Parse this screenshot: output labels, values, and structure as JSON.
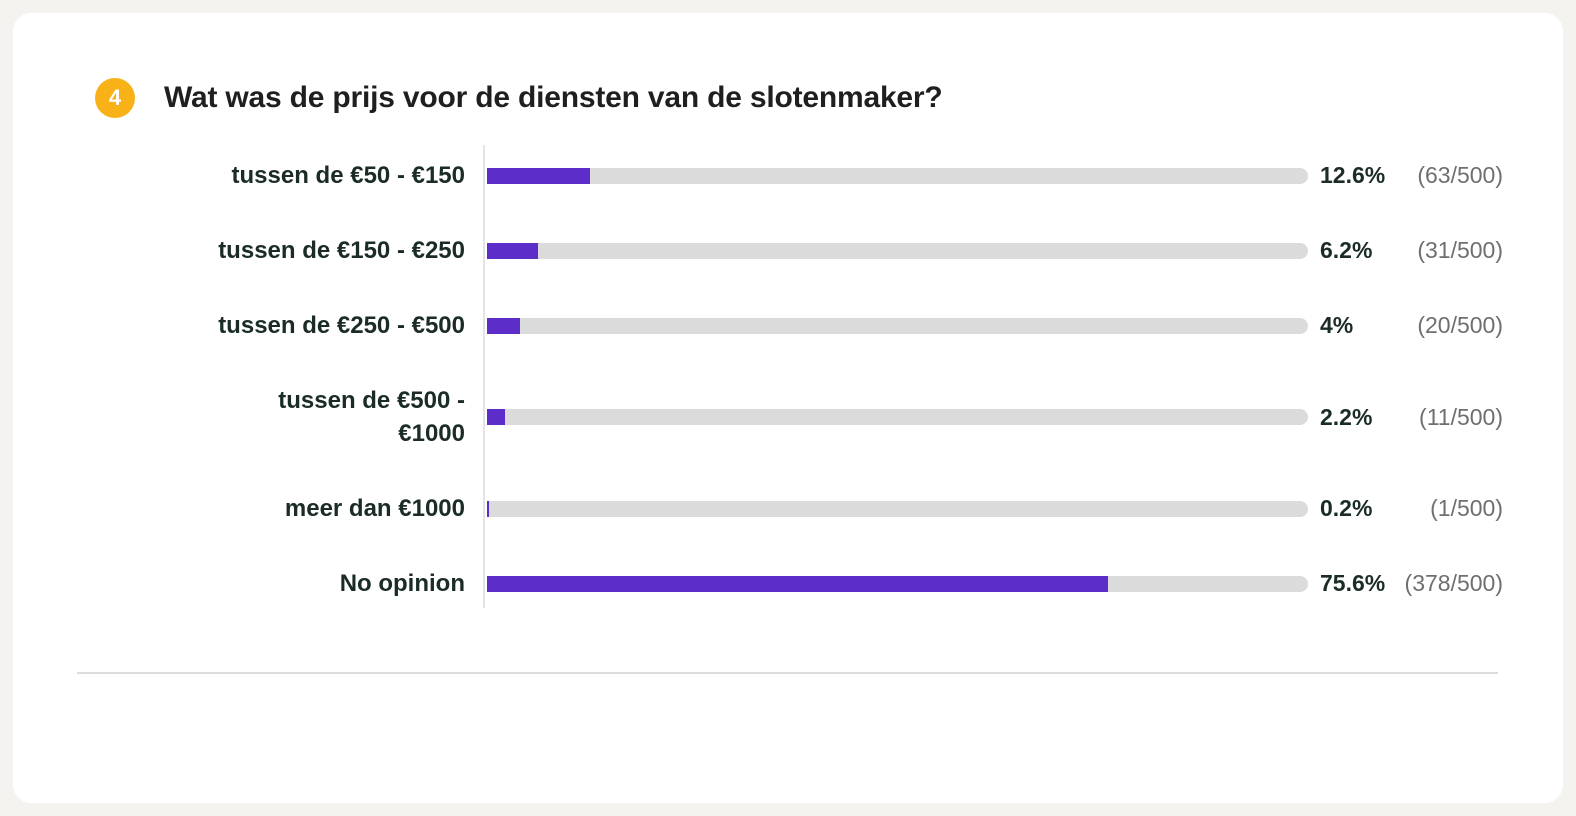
{
  "page": {
    "background_color": "#F5F3F0",
    "card_color": "#FFFFFF"
  },
  "question": {
    "number": "4",
    "title": "Wat was de prijs voor de diensten van de slotenmaker?",
    "badge_color": "#F8B117"
  },
  "chart_data": {
    "type": "bar",
    "orientation": "horizontal",
    "title": "Wat was de prijs voor de diensten van de slotenmaker?",
    "categories": [
      "tussen de €50 - €150",
      "tussen de €150 - €250",
      "tussen de €250 - €500",
      "tussen de €500 - €1000",
      "meer dan €1000",
      "No opinion"
    ],
    "display_labels": [
      "tussen de €50 - €150",
      "tussen de €150 - €250",
      "tussen de €250 - €500",
      "tussen de €500 -\n€1000",
      "meer dan €1000",
      "No opinion"
    ],
    "values": [
      12.6,
      6.2,
      4,
      2.2,
      0.2,
      75.6
    ],
    "percent_labels": [
      "12.6%",
      "6.2%",
      "4%",
      "2.2%",
      "0.2%",
      "75.6%"
    ],
    "counts": [
      63,
      31,
      20,
      11,
      1,
      378
    ],
    "count_labels": [
      "(63/500)",
      "(31/500)",
      "(20/500)",
      "(11/500)",
      "(1/500)",
      "(378/500)"
    ],
    "total_responses": 500,
    "xlim": [
      0,
      100
    ],
    "grid": false,
    "legend": false,
    "bar_color": "#5C2DC8",
    "track_color": "#DBDBDB"
  }
}
